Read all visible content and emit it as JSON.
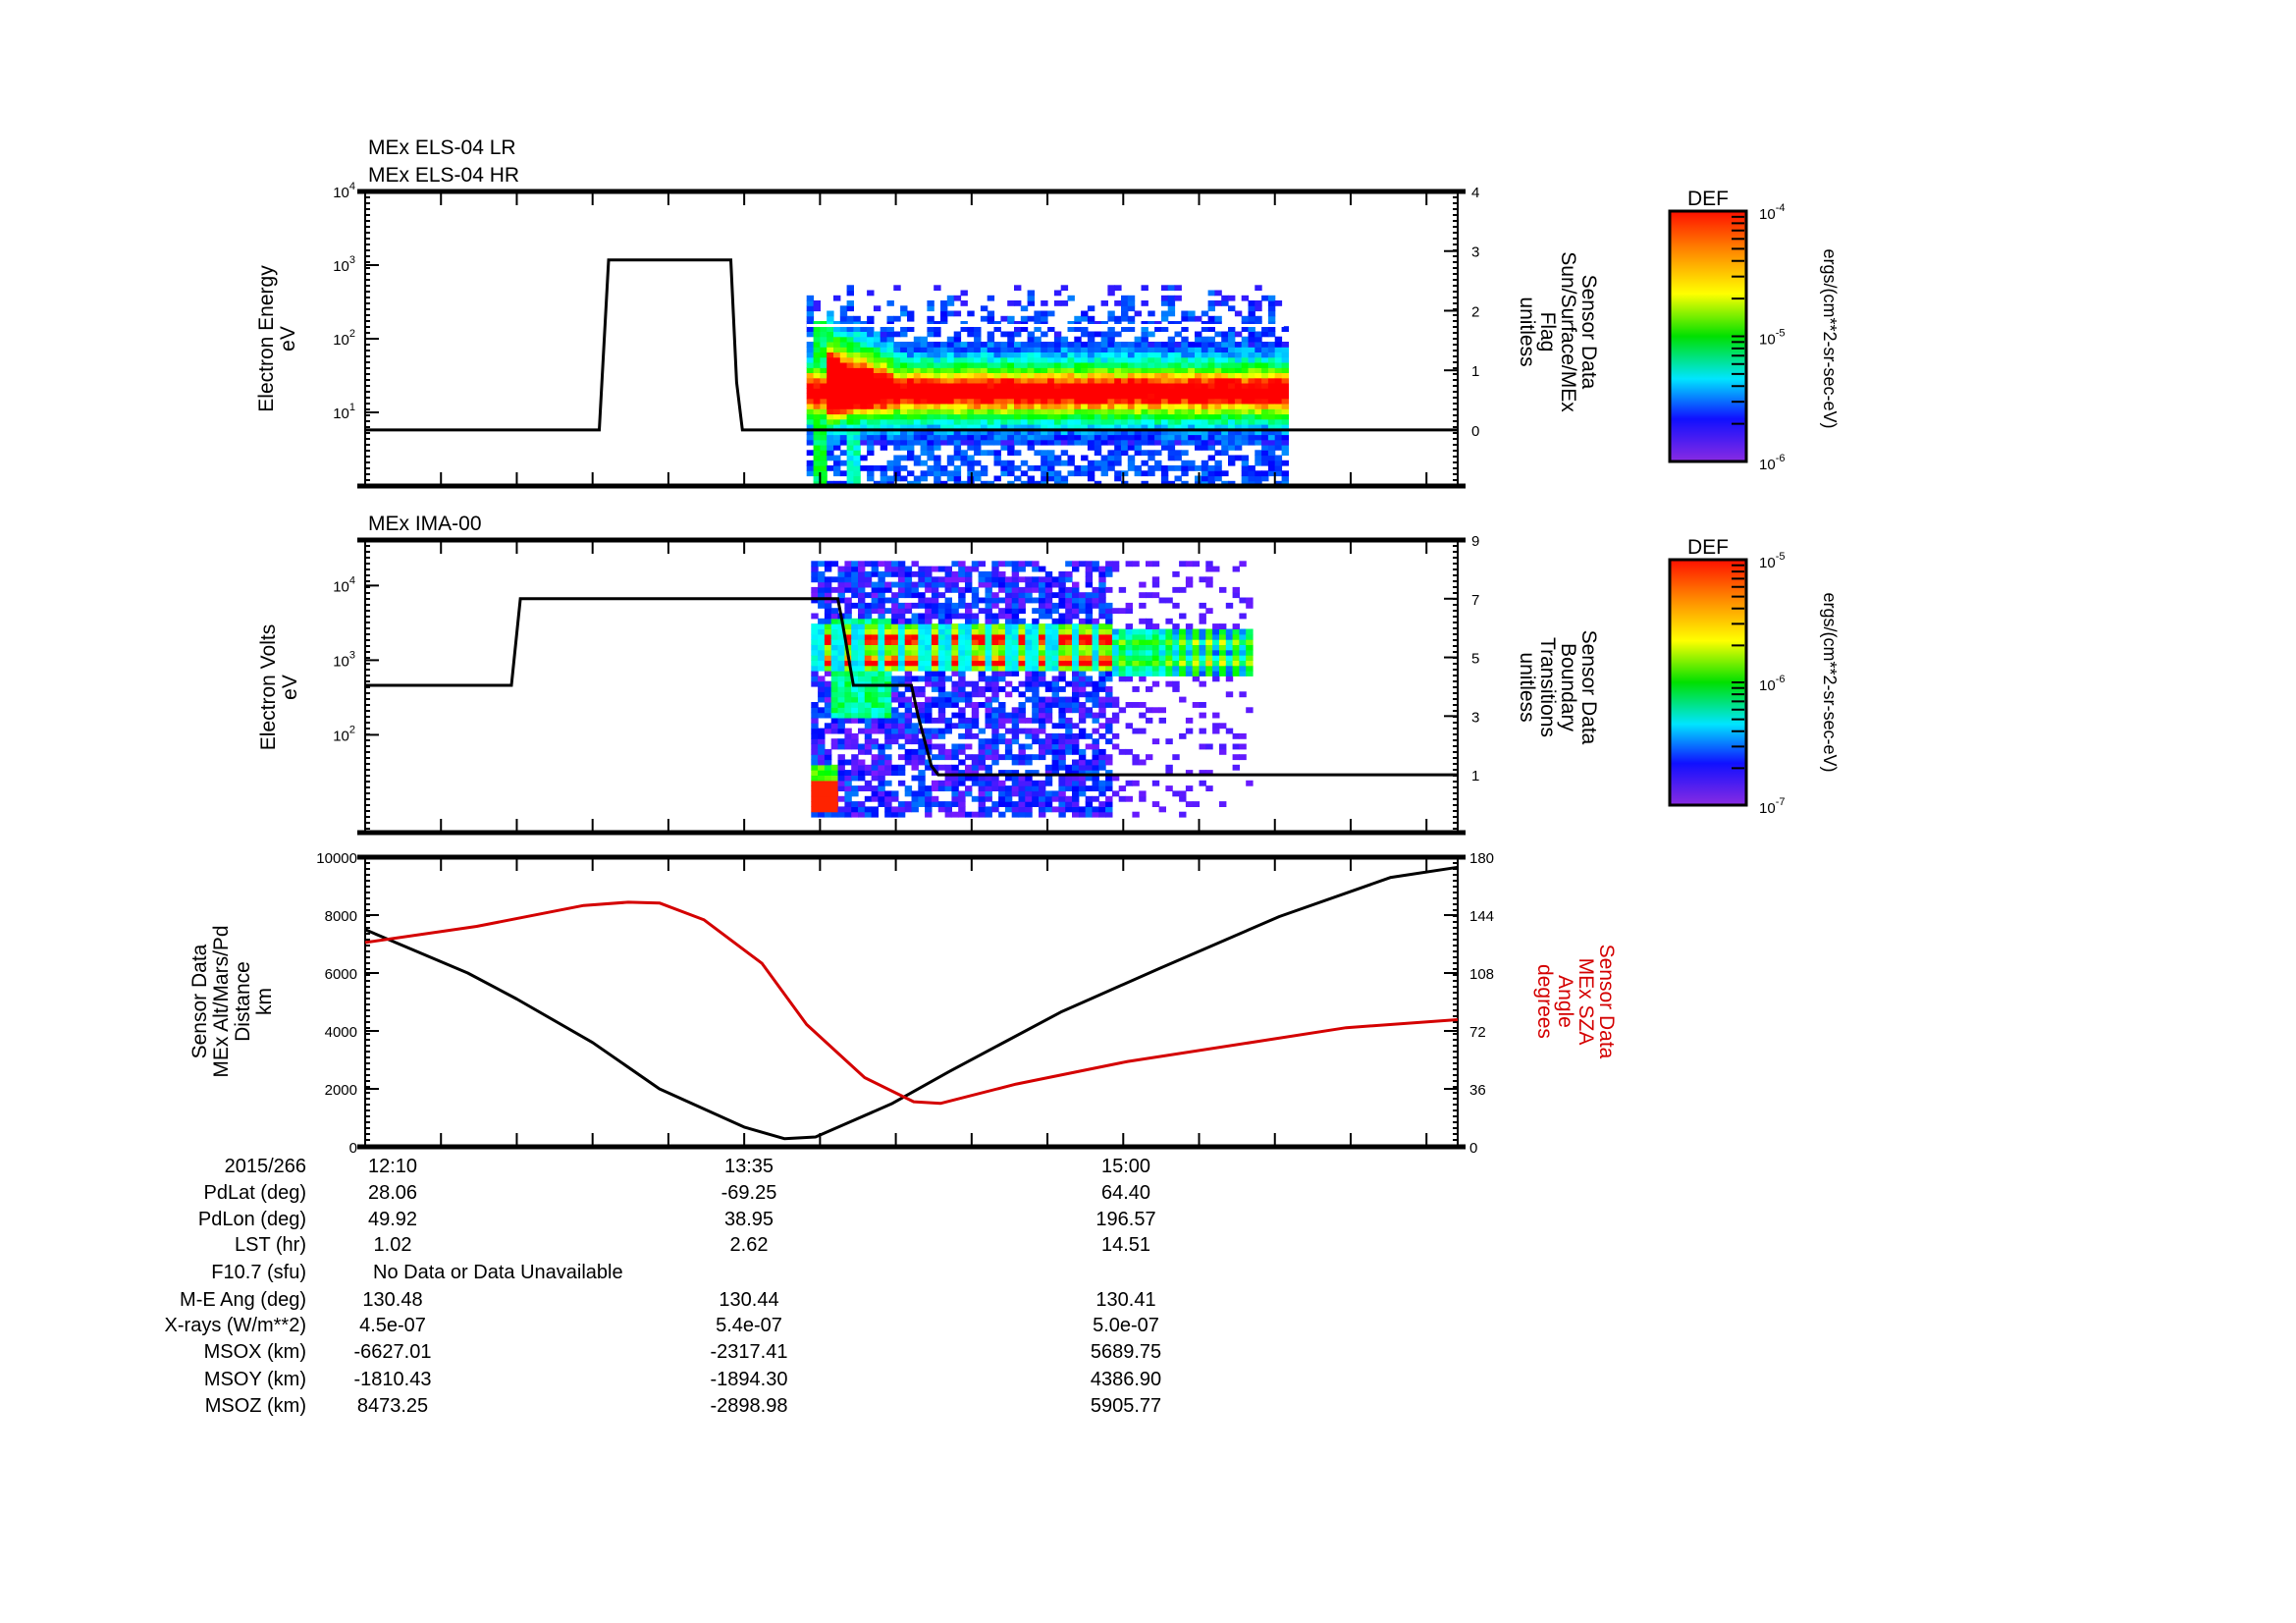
{
  "time_axis": {
    "start_label": "12:10",
    "unit": "minutes after 12:10",
    "xlim": [
      0,
      245
    ],
    "major_tick_every_min": 17,
    "labelled_every_min": 85
  },
  "chart_data": [
    {
      "id": "els",
      "type": "heatmap",
      "title_lines": [
        "MEx ELS-04 LR",
        "MEx ELS-04 HR"
      ],
      "ylabel": [
        "Electron Energy",
        "eV"
      ],
      "yscale": "log",
      "ylim_log10": [
        0,
        4
      ],
      "yticks": [
        {
          "base": "10",
          "exp": "1",
          "log": 1
        },
        {
          "base": "10",
          "exp": "2",
          "log": 2
        },
        {
          "base": "10",
          "exp": "3",
          "log": 3
        },
        {
          "base": "10",
          "exp": "4",
          "log": 4
        }
      ],
      "y2label": [
        "Sensor Data",
        "Sun/Surface/MEx",
        "Flag",
        "unitless"
      ],
      "y2lim": [
        -0.94,
        4
      ],
      "y2ticks": [
        "0",
        "1",
        "2",
        "3",
        "4"
      ],
      "line": {
        "name": "Sun/Surface/MEx Flag",
        "color": "#000000",
        "x": [
          0,
          52.5,
          54.6,
          82,
          83.3,
          84.6,
          245
        ],
        "y": [
          0,
          0,
          2.85,
          2.85,
          0.8,
          0,
          0
        ]
      },
      "spectrogram": {
        "t_range": [
          99,
          206
        ],
        "peak_energy_eV": 20,
        "burst_t_range": [
          103,
          118
        ],
        "upper_energy_eV": 400,
        "gap_energy_eV": 150
      },
      "colorbar": {
        "title": "DEF",
        "ticks": [
          {
            "base": "10",
            "exp": "-4"
          },
          {
            "base": "10",
            "exp": "-5"
          },
          {
            "base": "10",
            "exp": "-6"
          }
        ],
        "range": [
          1e-06,
          0.0001
        ],
        "units": "ergs/(cm**2-sr-sec-eV)"
      }
    },
    {
      "id": "ima",
      "type": "heatmap",
      "title_lines": [
        "MEx IMA-00"
      ],
      "ylabel": [
        "Electron Volts",
        "eV"
      ],
      "yscale": "log",
      "ylim_log10": [
        0.69,
        4.61
      ],
      "yticks": [
        {
          "base": "10",
          "exp": "2",
          "log": 2
        },
        {
          "base": "10",
          "exp": "3",
          "log": 3
        },
        {
          "base": "10",
          "exp": "4",
          "log": 4
        }
      ],
      "y2label": [
        "Sensor Data",
        "Boundary",
        "Transitions",
        "unitless"
      ],
      "y2lim": [
        -0.97,
        9
      ],
      "y2ticks": [
        "1",
        "3",
        "5",
        "7",
        "9"
      ],
      "line": {
        "name": "Boundary Transitions",
        "color": "#000000",
        "x": [
          0,
          32.8,
          34.8,
          106,
          107,
          109.5,
          122.5,
          124,
          127,
          128.5,
          245
        ],
        "y": [
          4.05,
          4.05,
          7,
          7,
          6.2,
          4.05,
          4.05,
          3,
          1.3,
          1,
          1
        ]
      },
      "spectrogram": {
        "t_range": [
          100,
          199
        ],
        "dense_until": 167,
        "band_energy_eV": [
          700,
          3000
        ],
        "low_blob_t_range": [
          100,
          106
        ]
      },
      "colorbar": {
        "title": "DEF",
        "ticks": [
          {
            "base": "10",
            "exp": "-5"
          },
          {
            "base": "10",
            "exp": "-6"
          },
          {
            "base": "10",
            "exp": "-7"
          }
        ],
        "range": [
          1e-07,
          1e-05
        ],
        "units": "ergs/(cm**2-sr-sec-eV)"
      }
    },
    {
      "id": "orbit",
      "type": "line",
      "ylabel": [
        "Sensor Data",
        "MEx Alt/Mars/Pd",
        "Distance",
        "km"
      ],
      "ylim": [
        0,
        10000
      ],
      "yticks": [
        "0",
        "2000",
        "4000",
        "6000",
        "8000",
        "10000"
      ],
      "y2label": [
        "Sensor Data",
        "MEx SZA",
        "Angle",
        "degrees"
      ],
      "y2lim": [
        0,
        180
      ],
      "y2ticks": [
        "0",
        "36",
        "72",
        "108",
        "144",
        "180"
      ],
      "series": [
        {
          "name": "MEx Alt/Mars/Pd Distance",
          "axis": "left",
          "color": "#000000",
          "x": [
            0,
            23,
            34,
            51,
            66,
            85,
            94,
            101,
            118,
            131,
            156,
            178,
            205,
            230,
            245
          ],
          "y": [
            7500,
            6000,
            5100,
            3600,
            2000,
            680,
            280,
            340,
            1480,
            2600,
            4650,
            6150,
            7950,
            9300,
            9650
          ]
        },
        {
          "name": "MEx SZA Angle",
          "axis": "right",
          "color": "#d40000",
          "x": [
            0,
            25,
            49,
            59,
            66,
            76,
            89,
            99,
            112,
            123,
            129,
            146,
            171,
            199,
            220,
            245
          ],
          "y": [
            127,
            137,
            150,
            152,
            151.5,
            141,
            114,
            76,
            43,
            28,
            27,
            39,
            53,
            65,
            74,
            79
          ]
        }
      ]
    }
  ],
  "ephemeris_table": [
    {
      "label": "2015/266",
      "values": [
        "12:10",
        "13:35",
        "15:00"
      ]
    },
    {
      "label": "PdLat (deg)",
      "values": [
        "28.06",
        "-69.25",
        "64.40"
      ]
    },
    {
      "label": "PdLon (deg)",
      "values": [
        "49.92",
        "38.95",
        "196.57"
      ]
    },
    {
      "label": "LST (hr)",
      "values": [
        "1.02",
        "2.62",
        "14.51"
      ]
    },
    {
      "label": "F10.7 (sfu)",
      "span_text": "No Data or Data Unavailable"
    },
    {
      "label": "M-E Ang (deg)",
      "values": [
        "130.48",
        "130.44",
        "130.41"
      ]
    },
    {
      "label": "X-rays (W/m**2)",
      "values": [
        "4.5e-07",
        "5.4e-07",
        "5.0e-07"
      ]
    },
    {
      "label": "MSOX (km)",
      "values": [
        "-6627.01",
        "-2317.41",
        "5689.75"
      ]
    },
    {
      "label": "MSOY (km)",
      "values": [
        "-1810.43",
        "-1894.30",
        "4386.90"
      ]
    },
    {
      "label": "MSOZ (km)",
      "values": [
        "8473.25",
        "-2898.98",
        "5905.77"
      ]
    }
  ]
}
